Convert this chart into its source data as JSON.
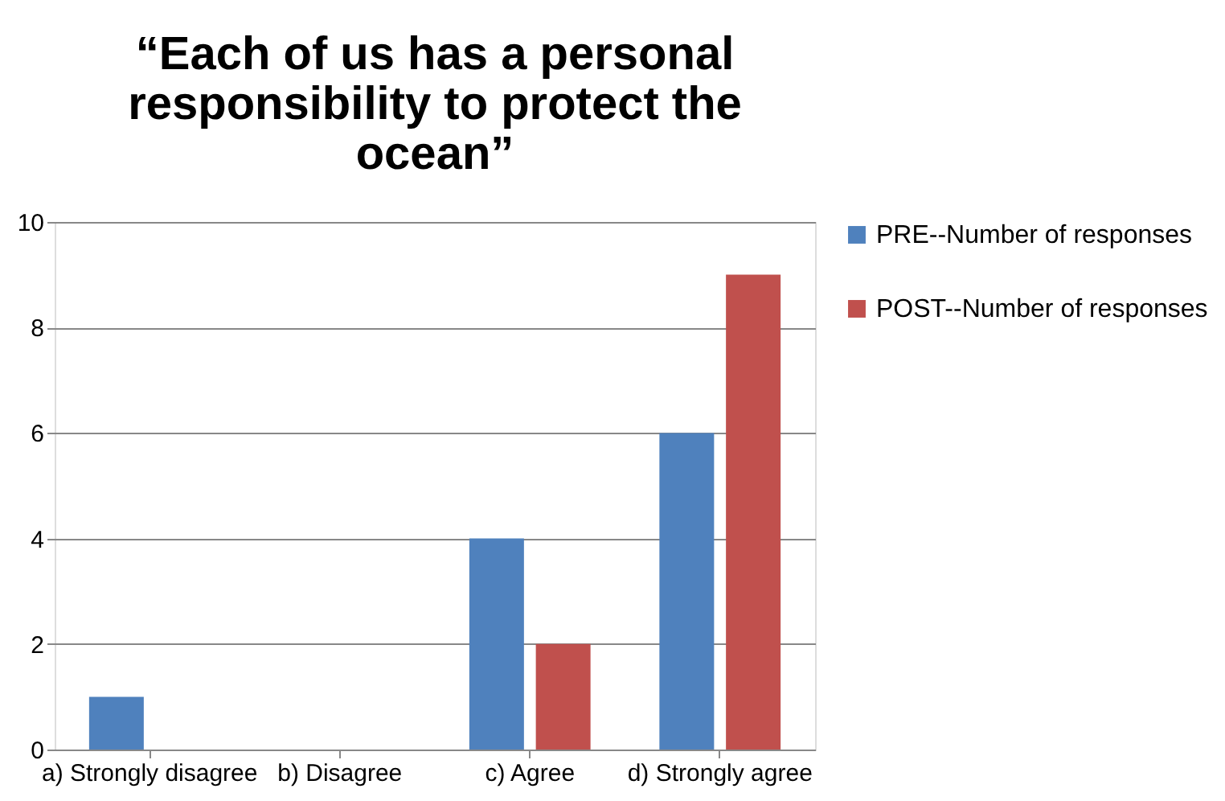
{
  "chart_data": {
    "type": "bar",
    "title": "“Each of us has a personal responsibility to protect the ocean”",
    "categories": [
      "a) Strongly disagree",
      "b) Disagree",
      "c) Agree",
      "d) Strongly agree"
    ],
    "series": [
      {
        "name": "PRE--Number of responses",
        "color": "#4f81bd",
        "values": [
          1,
          0,
          4,
          6
        ]
      },
      {
        "name": "POST--Number of responses",
        "color": "#c0504d",
        "values": [
          0,
          0,
          2,
          9
        ]
      }
    ],
    "ylim": [
      0,
      10
    ],
    "yticks": [
      0,
      2,
      4,
      6,
      8,
      10
    ],
    "grid": "y",
    "legend": "right"
  }
}
